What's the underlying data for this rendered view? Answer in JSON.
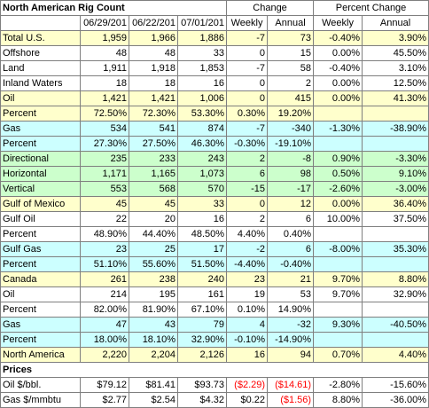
{
  "title": "North American Rig Count",
  "columns": [
    "06/29/201",
    "06/22/201",
    "07/01/201",
    "Weekly",
    "Annual",
    "Weekly",
    "Annual"
  ],
  "group_headers": {
    "change": "Change",
    "percent_change": "Percent Change"
  },
  "rows": [
    {
      "label": "Total U.S.",
      "style": "yellow",
      "v": [
        "1,959",
        "1,966",
        "1,886",
        "-7",
        "73",
        "-0.40%",
        "3.90%"
      ]
    },
    {
      "label": "Offshore",
      "style": "white",
      "v": [
        "48",
        "48",
        "33",
        "0",
        "15",
        "0.00%",
        "45.50%"
      ]
    },
    {
      "label": "Land",
      "style": "white",
      "v": [
        "1,911",
        "1,918",
        "1,853",
        "-7",
        "58",
        "-0.40%",
        "3.10%"
      ]
    },
    {
      "label": "Inland Waters",
      "style": "white",
      "v": [
        "18",
        "18",
        "16",
        "0",
        "2",
        "0.00%",
        "12.50%"
      ]
    },
    {
      "label": "Oil",
      "style": "yellow",
      "v": [
        "1,421",
        "1,421",
        "1,006",
        "0",
        "415",
        "0.00%",
        "41.30%"
      ]
    },
    {
      "label": "Percent",
      "style": "yellow",
      "v": [
        "72.50%",
        "72.30%",
        "53.30%",
        "0.30%",
        "19.20%",
        "",
        ""
      ]
    },
    {
      "label": "Gas",
      "style": "cyan",
      "v": [
        "534",
        "541",
        "874",
        "-7",
        "-340",
        "-1.30%",
        "-38.90%"
      ]
    },
    {
      "label": "Percent",
      "style": "cyan",
      "v": [
        "27.30%",
        "27.50%",
        "46.30%",
        "-0.30%",
        "-19.10%",
        "",
        ""
      ]
    },
    {
      "label": "Directional",
      "style": "green",
      "v": [
        "235",
        "233",
        "243",
        "2",
        "-8",
        "0.90%",
        "-3.30%"
      ]
    },
    {
      "label": "Horizontal",
      "style": "green",
      "v": [
        "1,171",
        "1,165",
        "1,073",
        "6",
        "98",
        "0.50%",
        "9.10%"
      ]
    },
    {
      "label": "Vertical",
      "style": "green",
      "v": [
        "553",
        "568",
        "570",
        "-15",
        "-17",
        "-2.60%",
        "-3.00%"
      ]
    },
    {
      "label": "Gulf of Mexico",
      "style": "yellow",
      "v": [
        "45",
        "45",
        "33",
        "0",
        "12",
        "0.00%",
        "36.40%"
      ]
    },
    {
      "label": "Gulf Oil",
      "style": "white",
      "v": [
        "22",
        "20",
        "16",
        "2",
        "6",
        "10.00%",
        "37.50%"
      ]
    },
    {
      "label": "Percent",
      "style": "white",
      "v": [
        "48.90%",
        "44.40%",
        "48.50%",
        "4.40%",
        "0.40%",
        "",
        ""
      ]
    },
    {
      "label": "Gulf Gas",
      "style": "cyan",
      "v": [
        "23",
        "25",
        "17",
        "-2",
        "6",
        "-8.00%",
        "35.30%"
      ]
    },
    {
      "label": "Percent",
      "style": "cyan",
      "v": [
        "51.10%",
        "55.60%",
        "51.50%",
        "-4.40%",
        "-0.40%",
        "",
        ""
      ]
    },
    {
      "label": "Canada",
      "style": "yellow",
      "v": [
        "261",
        "238",
        "240",
        "23",
        "21",
        "9.70%",
        "8.80%"
      ]
    },
    {
      "label": "Oil",
      "style": "white",
      "v": [
        "214",
        "195",
        "161",
        "19",
        "53",
        "9.70%",
        "32.90%"
      ]
    },
    {
      "label": "Percent",
      "style": "white",
      "v": [
        "82.00%",
        "81.90%",
        "67.10%",
        "0.10%",
        "14.90%",
        "",
        ""
      ]
    },
    {
      "label": "Gas",
      "style": "cyan",
      "v": [
        "47",
        "43",
        "79",
        "4",
        "-32",
        "9.30%",
        "-40.50%"
      ]
    },
    {
      "label": "Percent",
      "style": "cyan",
      "v": [
        "18.00%",
        "18.10%",
        "32.90%",
        "-0.10%",
        "-14.90%",
        "",
        ""
      ]
    },
    {
      "label": "North America",
      "style": "yellow",
      "v": [
        "2,220",
        "2,204",
        "2,126",
        "16",
        "94",
        "0.70%",
        "4.40%"
      ]
    }
  ],
  "prices_header": "Prices",
  "price_rows": [
    {
      "label": "Oil $/bbl.",
      "style": "white",
      "v": [
        "$79.12",
        "$81.41",
        "$93.73",
        "($2.29)",
        "($14.61)",
        "-2.80%",
        "-15.60%"
      ],
      "neg": [
        false,
        false,
        false,
        true,
        true,
        false,
        false
      ]
    },
    {
      "label": "Gas $/mmbtu",
      "style": "white",
      "v": [
        "$2.77",
        "$2.54",
        "$4.32",
        "$0.22",
        "($1.56)",
        "8.80%",
        "-36.00%"
      ],
      "neg": [
        false,
        false,
        false,
        false,
        true,
        false,
        false
      ]
    }
  ],
  "colors": {
    "yellow": "#ffffcc",
    "cyan": "#ccffff",
    "green": "#ccffcc",
    "negative": "#ff0000",
    "grid": "#7f7f7f"
  }
}
